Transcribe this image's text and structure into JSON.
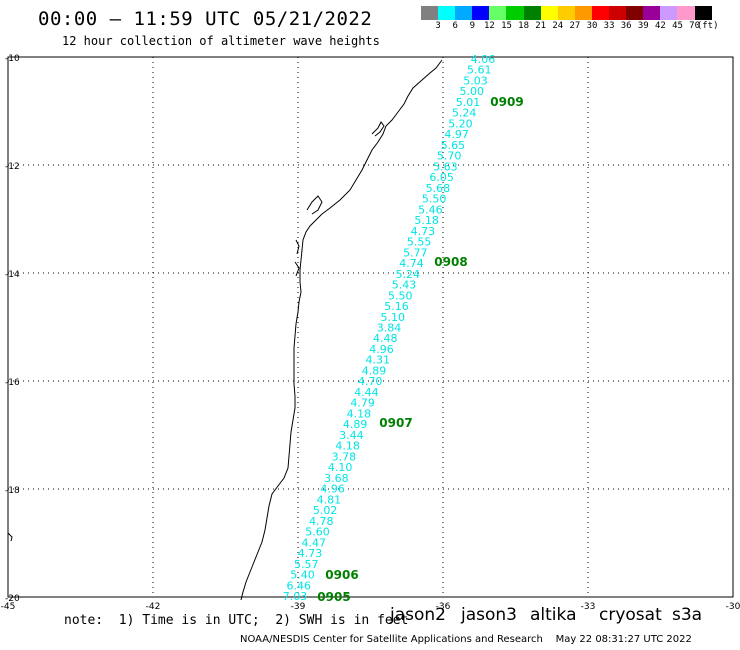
{
  "header": {
    "title": "00:00 – 11:59 UTC 05/21/2022",
    "subtitle": "12 hour collection of altimeter wave heights"
  },
  "legend": {
    "colors": [
      "#808080",
      "#00ffff",
      "#00aaff",
      "#0000ff",
      "#66ff66",
      "#00cc00",
      "#008000",
      "#ffff00",
      "#ffcc00",
      "#ff9900",
      "#ff0000",
      "#cc0000",
      "#800000",
      "#990099",
      "#cc99ff",
      "#ff99cc",
      "#000000"
    ],
    "labels": [
      "3",
      "6",
      "9",
      "12",
      "15",
      "18",
      "21",
      "24",
      "27",
      "30",
      "33",
      "36",
      "39",
      "42",
      "45",
      "70",
      "(ft)"
    ]
  },
  "map": {
    "lat_ticks": [
      "-10",
      "-12",
      "-14",
      "-16",
      "-18",
      "-20"
    ],
    "lon_ticks": [
      "-45",
      "-42",
      "-39",
      "-36",
      "-33",
      "-30"
    ],
    "track_color": "#00e5e5",
    "time_label_color": "#008000",
    "swh_values": [
      "4.06",
      "5.61",
      "5.03",
      "5.00",
      "5.01",
      "5.24",
      "5.20",
      "4.97",
      "5.65",
      "5.70",
      "5.63",
      "6.05",
      "5.68",
      "5.50",
      "5.46",
      "5.18",
      "4.73",
      "5.55",
      "5.77",
      "4.74",
      "5.24",
      "5.43",
      "5.50",
      "5.16",
      "5.10",
      "3.84",
      "4.48",
      "4.96",
      "4.31",
      "4.89",
      "4.70",
      "4.44",
      "4.79",
      "4.18",
      "4.89",
      "3.44",
      "4.18",
      "3.78",
      "4.10",
      "3.68",
      "4.96",
      "4.81",
      "5.02",
      "4.78",
      "5.60",
      "4.47",
      "4.73",
      "5.57",
      "5.40",
      "6.46",
      "7.03"
    ],
    "time_labels": [
      "0909",
      "0908",
      "0907",
      "0906",
      "0905"
    ]
  },
  "note": "note:  1) Time is in UTC;  2) SWH is in feet",
  "satellites": [
    {
      "name": "jason2",
      "color": "#0000ff"
    },
    {
      "name": "jason3",
      "color": "#009900"
    },
    {
      "name": "altika",
      "color": "#ff9900"
    },
    {
      "name": "cryosat",
      "color": "#ff0000"
    },
    {
      "name": "s3a",
      "color": "#990000"
    }
  ],
  "footer": "NOAA/NESDIS Center for Satellite Applications and Research    May 22 08:31:27 UTC 2022"
}
